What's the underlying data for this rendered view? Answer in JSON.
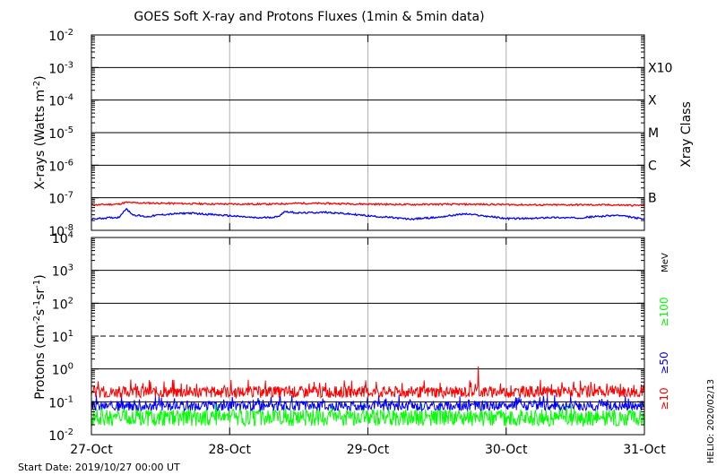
{
  "footer": {
    "start_label": "Start Date: 2019/10/27 00:00 UT",
    "credit": "HELIO: 2020/02/13"
  },
  "chart_data": [
    {
      "type": "line",
      "title": "GOES Soft X-ray and Protons Fluxes   (1min & 5min data)",
      "ylabel_main": "X-rays (Watts m",
      "ylabel_exp": "-2",
      "ylabel_close": ")",
      "right_label": "Xray Class",
      "yscale": "log",
      "ylim": [
        1e-08,
        0.01
      ],
      "yticks": [
        {
          "v": 1e-08,
          "base": "10",
          "exp": "-8"
        },
        {
          "v": 1e-07,
          "base": "10",
          "exp": "-7"
        },
        {
          "v": 1e-06,
          "base": "10",
          "exp": "-6"
        },
        {
          "v": 1e-05,
          "base": "10",
          "exp": "-5"
        },
        {
          "v": 0.0001,
          "base": "10",
          "exp": "-4"
        },
        {
          "v": 0.001,
          "base": "10",
          "exp": "-3"
        },
        {
          "v": 0.01,
          "base": "10",
          "exp": "-2"
        }
      ],
      "class_labels": [
        {
          "v": 1e-07,
          "label": "B"
        },
        {
          "v": 1e-06,
          "label": "C"
        },
        {
          "v": 1e-05,
          "label": "M"
        },
        {
          "v": 0.0001,
          "label": "X"
        },
        {
          "v": 0.001,
          "label": "X10"
        }
      ],
      "grid": true,
      "series": [
        {
          "color": "#ff0000",
          "x": [
            0,
            0.1,
            0.2,
            0.25,
            0.3,
            0.5,
            0.7,
            1.0,
            1.3,
            1.5,
            1.8,
            2.0,
            2.3,
            2.5,
            2.8,
            3.0,
            3.3,
            3.5,
            3.8,
            4.0
          ],
          "values": [
            6e-08,
            6.2e-08,
            6.4e-08,
            7.2e-08,
            7e-08,
            6.8e-08,
            6.6e-08,
            6.4e-08,
            6.4e-08,
            6.8e-08,
            6.6e-08,
            6.4e-08,
            6.2e-08,
            6.3e-08,
            6.3e-08,
            6.2e-08,
            6e-08,
            6.1e-08,
            6e-08,
            5.8e-08
          ]
        },
        {
          "color": "#0000ff",
          "x": [
            0,
            0.1,
            0.2,
            0.25,
            0.3,
            0.4,
            0.5,
            0.7,
            1.0,
            1.2,
            1.35,
            1.4,
            1.5,
            1.7,
            2.0,
            2.3,
            2.5,
            2.7,
            3.0,
            3.2,
            3.3,
            3.5,
            3.8,
            4.0
          ],
          "values": [
            2.2e-08,
            2.4e-08,
            2.5e-08,
            4.5e-08,
            3e-08,
            2.6e-08,
            3e-08,
            3.4e-08,
            2.8e-08,
            2.4e-08,
            2.6e-08,
            3.8e-08,
            3.4e-08,
            3.6e-08,
            2.8e-08,
            2.2e-08,
            2.5e-08,
            3.2e-08,
            2.3e-08,
            2.3e-08,
            2.5e-08,
            2.4e-08,
            2.9e-08,
            2.2e-08
          ]
        }
      ]
    },
    {
      "type": "line",
      "ylabel_main": "Protons (cm",
      "ylabel_exp": "-2",
      "ylabel_mid": "s",
      "ylabel_exp2": "-1",
      "ylabel_mid2": "sr",
      "ylabel_exp3": "-1",
      "ylabel_close": ")",
      "unit_label": "MeV",
      "yscale": "log",
      "ylim": [
        0.01,
        10000
      ],
      "yticks": [
        {
          "v": 0.01,
          "base": "10",
          "exp": "-2"
        },
        {
          "v": 0.1,
          "base": "10",
          "exp": "-1"
        },
        {
          "v": 1,
          "base": "10",
          "exp": "0"
        },
        {
          "v": 10,
          "base": "10",
          "exp": "1"
        },
        {
          "v": 100,
          "base": "10",
          "exp": "2"
        },
        {
          "v": 1000,
          "base": "10",
          "exp": "3"
        },
        {
          "v": 10000,
          "base": "10",
          "exp": "4"
        }
      ],
      "threshold": 10,
      "x_axis": {
        "ticks": [
          {
            "x": 0,
            "label": "27-Oct"
          },
          {
            "x": 1,
            "label": "28-Oct"
          },
          {
            "x": 2,
            "label": "29-Oct"
          },
          {
            "x": 3,
            "label": "30-Oct"
          },
          {
            "x": 4,
            "label": "31-Oct"
          }
        ]
      },
      "grid": true,
      "series": [
        {
          "name": "≥10",
          "color": "#ff0000",
          "level": 0.2,
          "spread": 1.5,
          "spike": [
            3.0,
            1.2
          ]
        },
        {
          "name": "≥50",
          "color": "#0000ff",
          "level": 0.075,
          "spread": 1.4
        },
        {
          "name": "≥100",
          "color": "#00ff00",
          "level": 0.033,
          "spread": 1.8
        }
      ]
    }
  ]
}
